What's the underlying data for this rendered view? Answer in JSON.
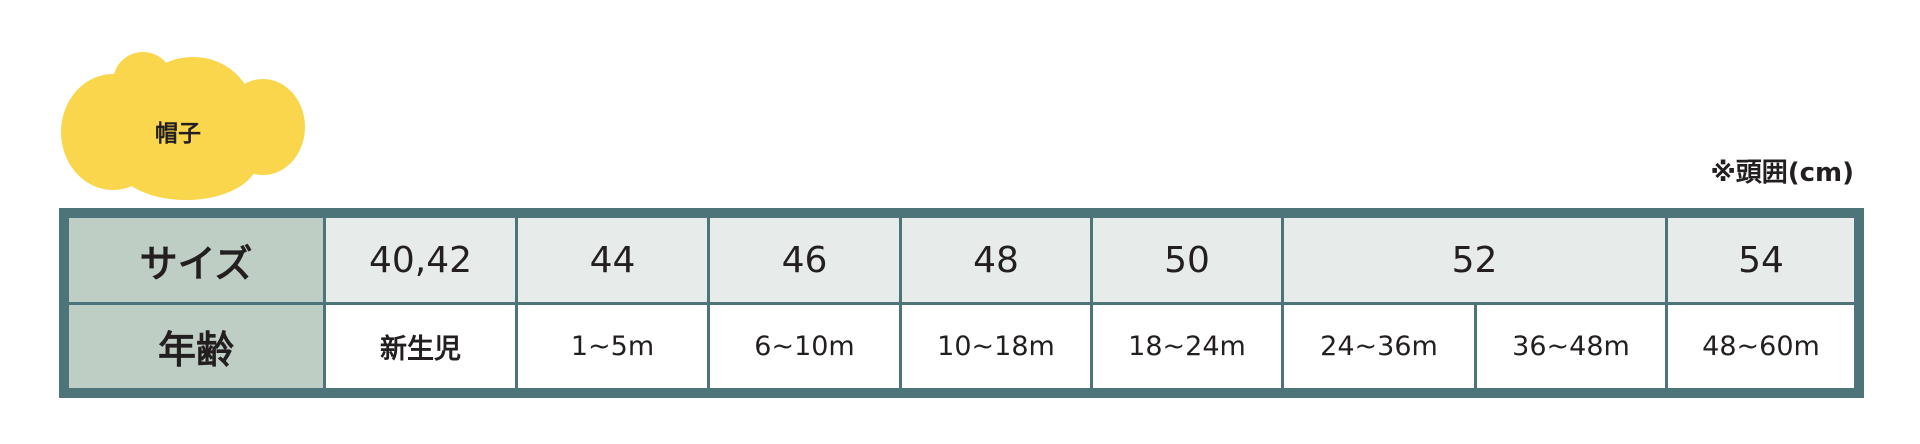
{
  "title": "帽子",
  "note": "※頭囲(cm)",
  "colors": {
    "cloud": "#f9d64c",
    "border": "#4d7479",
    "header_col": "#bfcec4",
    "size_row": "#e7ecea",
    "age_row": "#ffffff"
  },
  "table": {
    "size_label": "サイズ",
    "age_label": "年齢",
    "sizes": [
      "40,42",
      "44",
      "46",
      "48",
      "50",
      "52",
      "54"
    ],
    "ages": [
      "新生児",
      "1~5m",
      "6~10m",
      "10~18m",
      "18~24m",
      "24~36m",
      "36~48m",
      "48~60m"
    ]
  }
}
